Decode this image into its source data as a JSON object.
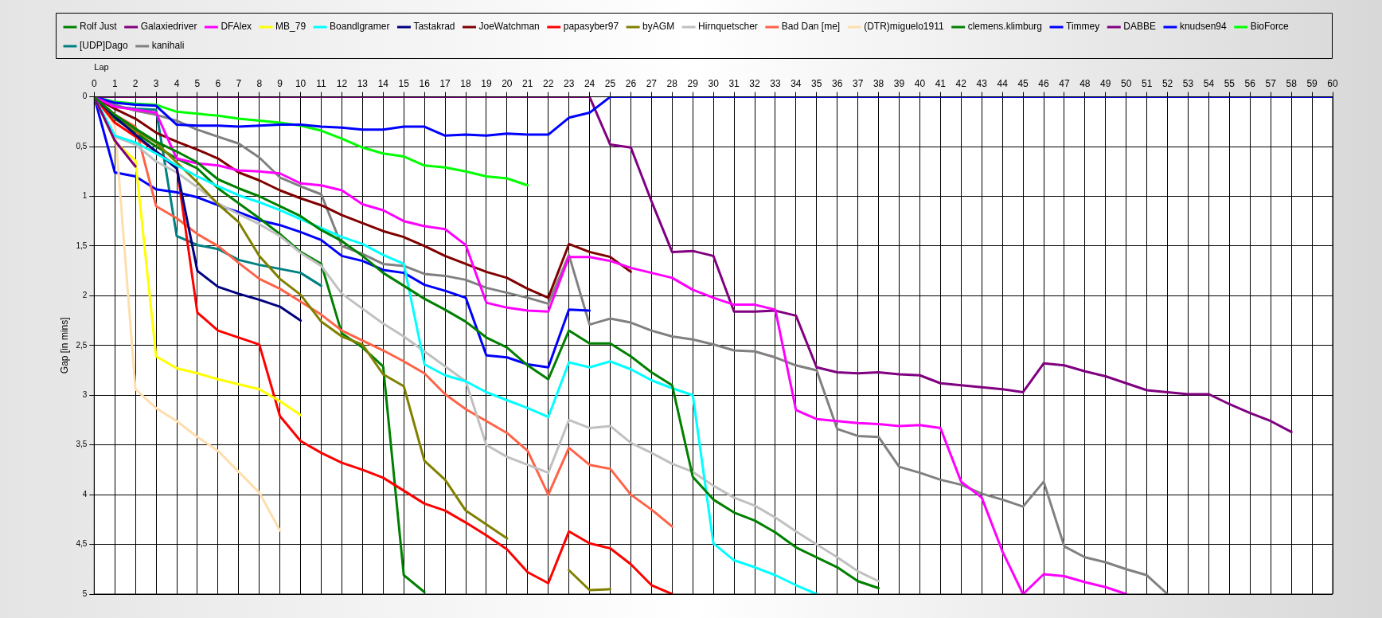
{
  "chart_data": {
    "type": "line",
    "xlabel": "Lap",
    "ylabel": "Gap [in mins]",
    "x": [
      0,
      1,
      2,
      3,
      4,
      5,
      6,
      7,
      8,
      9,
      10,
      11,
      12,
      13,
      14,
      15,
      16,
      17,
      18,
      19,
      20,
      21,
      22,
      23,
      24,
      25,
      26,
      27,
      28,
      29,
      30,
      31,
      32,
      33,
      34,
      35,
      36,
      37,
      38,
      39,
      40,
      41,
      42,
      43,
      44,
      45,
      46,
      47,
      48,
      49,
      50,
      51,
      52,
      53,
      54,
      55,
      56,
      57,
      58,
      59,
      60
    ],
    "xlim": [
      0,
      60
    ],
    "xticks": [
      0,
      1,
      2,
      3,
      4,
      5,
      6,
      7,
      8,
      9,
      10,
      11,
      12,
      13,
      14,
      15,
      16,
      17,
      18,
      19,
      20,
      21,
      22,
      23,
      24,
      25,
      26,
      27,
      28,
      29,
      30,
      31,
      32,
      33,
      34,
      35,
      36,
      37,
      38,
      39,
      40,
      41,
      42,
      43,
      44,
      45,
      46,
      47,
      48,
      49,
      50,
      51,
      52,
      53,
      54,
      55,
      56,
      57,
      58,
      59,
      60
    ],
    "ylim": [
      5,
      0
    ],
    "yticks": [
      0,
      {
        "value": 0.5,
        "label": "0,5"
      },
      1,
      {
        "value": 1.5,
        "label": "1,5"
      },
      2,
      {
        "value": 2.5,
        "label": "2,5"
      },
      3,
      {
        "value": 3.5,
        "label": "3,5"
      },
      4,
      {
        "value": 4.5,
        "label": "4,5"
      },
      5
    ],
    "grid": true,
    "legend": "top",
    "marker": "none",
    "line_style": "solid",
    "series": [
      {
        "name": "Rolf Just",
        "color": "#008000",
        "values": [
          0,
          0.18,
          0.32,
          0.45,
          0.55,
          0.66,
          0.83,
          0.92,
          1.0,
          1.1,
          1.2,
          1.34,
          1.45,
          1.6,
          1.77,
          1.9,
          2.03,
          2.14,
          2.26,
          2.42,
          2.52,
          2.7,
          2.84,
          2.35,
          2.48,
          2.48,
          2.61,
          2.77,
          2.9,
          3.82,
          4.05,
          4.18,
          4.26,
          4.38,
          4.53,
          4.63,
          4.73,
          4.87,
          4.94,
          null,
          null,
          null,
          null,
          null,
          null,
          null,
          null,
          null,
          null,
          null,
          null,
          null,
          null,
          null,
          null,
          null,
          null,
          null,
          null,
          null,
          null
        ]
      },
      {
        "name": "Galaxiedriver",
        "color": "#800080",
        "values": [
          0,
          0.44,
          0.7,
          null,
          null,
          null,
          null,
          null,
          null,
          null,
          null,
          null,
          null,
          null,
          null,
          null,
          null,
          null,
          null,
          null,
          null,
          null,
          null,
          null,
          null,
          null,
          null,
          null,
          null,
          null,
          null,
          null,
          null,
          null,
          null,
          null,
          null,
          null,
          null,
          null,
          null,
          null,
          null,
          null,
          null,
          null,
          null,
          null,
          null,
          null,
          null,
          null,
          null,
          null,
          null,
          null,
          null,
          null,
          null,
          null,
          null
        ]
      },
      {
        "name": "DFAlex",
        "color": "#ff00ff",
        "values": [
          0,
          0.1,
          0.13,
          0.16,
          0.62,
          0.67,
          0.69,
          0.74,
          0.75,
          0.77,
          0.87,
          0.89,
          0.94,
          1.08,
          1.14,
          1.25,
          1.3,
          1.33,
          1.49,
          2.07,
          2.12,
          2.15,
          2.16,
          1.61,
          1.61,
          1.65,
          1.72,
          1.77,
          1.82,
          1.94,
          2.02,
          2.09,
          2.09,
          2.14,
          3.15,
          3.24,
          3.26,
          3.28,
          3.29,
          3.31,
          3.3,
          3.33,
          3.87,
          4.03,
          4.57,
          5.0,
          4.8,
          4.82,
          4.88,
          4.93,
          5.0,
          null,
          null,
          null,
          null,
          null,
          null,
          null,
          null,
          null,
          null
        ]
      },
      {
        "name": "MB_79",
        "color": "#ffff00",
        "values": [
          0,
          0.45,
          0.64,
          2.61,
          2.73,
          2.78,
          2.84,
          2.89,
          2.94,
          3.06,
          3.2,
          null,
          null,
          null,
          null,
          null,
          null,
          null,
          null,
          null,
          null,
          null,
          null,
          null,
          null,
          null,
          null,
          null,
          null,
          null,
          null,
          null,
          null,
          null,
          null,
          null,
          null,
          null,
          null,
          null,
          null,
          null,
          null,
          null,
          null,
          null,
          null,
          null,
          null,
          null,
          null,
          null,
          null,
          null,
          null,
          null,
          null,
          null,
          null,
          null,
          null
        ]
      },
      {
        "name": "Boandlgramer",
        "color": "#00ffff",
        "values": [
          0,
          0.39,
          0.46,
          0.57,
          0.69,
          0.8,
          0.9,
          0.99,
          1.06,
          1.14,
          1.23,
          1.32,
          1.41,
          1.48,
          1.59,
          1.68,
          2.69,
          2.8,
          2.86,
          2.97,
          3.05,
          3.13,
          3.22,
          2.67,
          2.72,
          2.66,
          2.74,
          2.85,
          2.93,
          3.0,
          4.49,
          4.66,
          4.73,
          4.81,
          4.91,
          5.0,
          null,
          null,
          null,
          null,
          null,
          null,
          null,
          null,
          null,
          null,
          null,
          null,
          null,
          null,
          null,
          null,
          null,
          null,
          null,
          null,
          null,
          null,
          null,
          null,
          null
        ]
      },
      {
        "name": "Tastakrad",
        "color": "#000080",
        "values": [
          0,
          0.2,
          0.38,
          0.55,
          0.72,
          1.75,
          1.91,
          1.98,
          2.04,
          2.11,
          2.25,
          null,
          null,
          null,
          null,
          null,
          null,
          null,
          null,
          null,
          null,
          null,
          null,
          null,
          null,
          null,
          null,
          null,
          null,
          null,
          null,
          null,
          null,
          null,
          null,
          null,
          null,
          null,
          null,
          null,
          null,
          null,
          null,
          null,
          null,
          null,
          null,
          null,
          null,
          null,
          null,
          null,
          null,
          null,
          null,
          null,
          null,
          null,
          null,
          null,
          null
        ]
      },
      {
        "name": "JoeWatchman",
        "color": "#800000",
        "values": [
          0,
          0.12,
          0.22,
          0.36,
          0.45,
          0.53,
          0.62,
          0.76,
          0.84,
          0.94,
          1.02,
          1.09,
          1.19,
          1.27,
          1.35,
          1.41,
          1.5,
          1.6,
          1.68,
          1.76,
          1.82,
          1.93,
          2.02,
          1.48,
          1.56,
          1.61,
          1.76,
          null,
          null,
          null,
          null,
          null,
          null,
          null,
          null,
          null,
          null,
          null,
          null,
          null,
          null,
          null,
          null,
          null,
          null,
          null,
          null,
          null,
          null,
          null,
          null,
          null,
          null,
          null,
          null,
          null,
          null,
          null,
          null,
          null,
          null
        ]
      },
      {
        "name": "papasyber97",
        "color": "#ff0000",
        "values": [
          0,
          0.26,
          0.4,
          0.55,
          0.7,
          2.17,
          2.35,
          2.42,
          2.49,
          3.21,
          3.46,
          3.58,
          3.68,
          3.75,
          3.83,
          3.96,
          4.09,
          4.16,
          4.28,
          4.41,
          4.55,
          4.78,
          4.89,
          4.37,
          4.49,
          4.54,
          4.7,
          4.91,
          5.0,
          null,
          null,
          null,
          null,
          null,
          null,
          null,
          null,
          null,
          null,
          null,
          null,
          null,
          null,
          null,
          null,
          null,
          null,
          null,
          null,
          null,
          null,
          null,
          null,
          null,
          null,
          null,
          null,
          null,
          null,
          null,
          null
        ]
      },
      {
        "name": "byAGM",
        "color": "#808000",
        "values": [
          0,
          0.2,
          0.34,
          0.46,
          0.66,
          0.86,
          1.08,
          1.26,
          1.6,
          1.83,
          1.99,
          2.26,
          2.41,
          2.49,
          2.79,
          2.91,
          3.66,
          3.85,
          4.16,
          4.3,
          4.44,
          null,
          null,
          4.76,
          4.96,
          4.95,
          null,
          null,
          null,
          null,
          null,
          null,
          null,
          null,
          null,
          null,
          null,
          null,
          null,
          null,
          null,
          null,
          null,
          null,
          null,
          null,
          null,
          null,
          null,
          null,
          null,
          null,
          null,
          null,
          null,
          null,
          null,
          null,
          null,
          null,
          null
        ]
      },
      {
        "name": "Hirnquetscher",
        "color": "#c0c0c0",
        "values": [
          0,
          0.4,
          0.48,
          0.65,
          0.76,
          0.91,
          1.07,
          1.18,
          1.28,
          1.4,
          1.57,
          1.7,
          1.98,
          2.13,
          2.28,
          2.41,
          2.56,
          2.71,
          2.86,
          3.5,
          3.62,
          3.7,
          3.78,
          3.25,
          3.33,
          3.31,
          3.48,
          3.58,
          3.69,
          3.77,
          3.91,
          4.03,
          4.11,
          4.23,
          4.37,
          4.5,
          4.63,
          4.77,
          4.87,
          null,
          null,
          null,
          null,
          null,
          null,
          null,
          null,
          null,
          null,
          null,
          null,
          null,
          null,
          null,
          null,
          null,
          null,
          null,
          null,
          null,
          null
        ]
      },
      {
        "name": "Bad Dan [me]",
        "color": "#ff6347",
        "values": [
          0,
          0.18,
          0.3,
          1.1,
          1.22,
          1.38,
          1.5,
          1.67,
          1.83,
          1.93,
          2.06,
          2.19,
          2.35,
          2.45,
          2.55,
          2.66,
          2.78,
          2.99,
          3.14,
          3.26,
          3.38,
          3.56,
          4.0,
          3.53,
          3.7,
          3.74,
          4.0,
          4.15,
          4.32,
          null,
          null,
          null,
          null,
          null,
          null,
          null,
          null,
          null,
          null,
          null,
          null,
          null,
          null,
          null,
          null,
          null,
          null,
          null,
          null,
          null,
          null,
          null,
          null,
          null,
          null,
          null,
          null,
          null,
          null,
          null,
          null
        ]
      },
      {
        "name": "(DTR)miguelo1911",
        "color": "#ffdead",
        "values": [
          0,
          0.28,
          2.94,
          3.13,
          3.26,
          3.42,
          3.56,
          3.77,
          3.98,
          4.36,
          null,
          null,
          null,
          null,
          null,
          null,
          null,
          null,
          null,
          null,
          null,
          null,
          null,
          null,
          null,
          null,
          null,
          null,
          null,
          null,
          null,
          null,
          null,
          null,
          null,
          null,
          null,
          null,
          null,
          null,
          null,
          null,
          null,
          null,
          null,
          null,
          null,
          null,
          null,
          null,
          null,
          null,
          null,
          null,
          null,
          null,
          null,
          null,
          null,
          null,
          null
        ]
      },
      {
        "name": "clemens.klimburg",
        "color": "#008000",
        "values": [
          0,
          0.22,
          0.36,
          0.5,
          0.62,
          0.72,
          0.92,
          1.07,
          1.22,
          1.38,
          1.56,
          1.68,
          2.38,
          2.52,
          2.71,
          4.81,
          4.98,
          null,
          null,
          null,
          null,
          null,
          null,
          null,
          null,
          null,
          null,
          null,
          null,
          null,
          null,
          null,
          null,
          null,
          null,
          null,
          null,
          null,
          null,
          null,
          null,
          null,
          null,
          null,
          null,
          null,
          null,
          null,
          null,
          null,
          null,
          null,
          null,
          null,
          null,
          null,
          null,
          null,
          null,
          null,
          null
        ]
      },
      {
        "name": "Timmey",
        "color": "#0000ff",
        "values": [
          0,
          0.06,
          0.08,
          0.09,
          0.28,
          0.29,
          0.29,
          0.3,
          0.29,
          0.28,
          0.28,
          0.3,
          0.31,
          0.33,
          0.33,
          0.3,
          0.3,
          0.39,
          0.38,
          0.39,
          0.37,
          0.38,
          0.38,
          0.21,
          0.16,
          0,
          0,
          0,
          0,
          0,
          0,
          0,
          0,
          0,
          0,
          0,
          0,
          0,
          0,
          0,
          0,
          0,
          0,
          0,
          0,
          0,
          0,
          0,
          0,
          0,
          0,
          0,
          0,
          0,
          0,
          0,
          0,
          0,
          0,
          0,
          0
        ]
      },
      {
        "name": "DABBE",
        "color": "#800080",
        "values": [
          0,
          0,
          0,
          0,
          0,
          0,
          0,
          0,
          0,
          0,
          0,
          0,
          0,
          0,
          0,
          0,
          0,
          0,
          0,
          0,
          0,
          0,
          0,
          0,
          0,
          0.48,
          0.51,
          1.05,
          1.56,
          1.55,
          1.6,
          2.16,
          2.16,
          2.15,
          2.2,
          2.72,
          2.77,
          2.78,
          2.77,
          2.79,
          2.8,
          2.88,
          2.9,
          2.92,
          2.94,
          2.97,
          2.68,
          2.7,
          2.76,
          2.81,
          2.88,
          2.95,
          2.97,
          2.99,
          2.99,
          3.09,
          3.18,
          3.26,
          3.37,
          null,
          null
        ]
      },
      {
        "name": "knudsen94",
        "color": "#0000ff",
        "values": [
          0,
          0.76,
          0.8,
          0.93,
          0.96,
          1.01,
          1.09,
          1.16,
          1.24,
          1.29,
          1.36,
          1.44,
          1.6,
          1.65,
          1.74,
          1.77,
          1.89,
          1.95,
          2.02,
          2.6,
          2.62,
          2.69,
          2.72,
          2.14,
          2.15,
          null,
          null,
          null,
          null,
          null,
          null,
          null,
          null,
          null,
          null,
          null,
          null,
          null,
          null,
          null,
          null,
          null,
          null,
          null,
          null,
          null,
          null,
          null,
          null,
          null,
          null,
          null,
          null,
          null,
          null,
          null,
          null,
          null,
          null,
          null,
          null
        ]
      },
      {
        "name": "BioForce",
        "color": "#00ff00",
        "values": [
          0,
          0.05,
          0.07,
          0.08,
          0.15,
          0.17,
          0.19,
          0.22,
          0.24,
          0.26,
          0.29,
          0.34,
          0.42,
          0.51,
          0.57,
          0.6,
          0.69,
          0.71,
          0.75,
          0.8,
          0.82,
          0.89,
          null,
          null,
          null,
          null,
          null,
          null,
          null,
          null,
          null,
          null,
          null,
          null,
          null,
          null,
          null,
          null,
          null,
          null,
          null,
          null,
          null,
          null,
          null,
          null,
          null,
          null,
          null,
          null,
          null,
          null,
          null,
          null,
          null,
          null,
          null,
          null,
          null,
          null,
          null
        ]
      },
      {
        "name": "[UDP]Dago",
        "color": "#008080",
        "values": [
          0,
          0.1,
          0.12,
          0.13,
          1.4,
          1.49,
          1.53,
          1.64,
          1.69,
          1.73,
          1.77,
          1.9,
          null,
          null,
          null,
          null,
          null,
          null,
          null,
          null,
          null,
          null,
          null,
          null,
          null,
          null,
          null,
          null,
          null,
          null,
          null,
          null,
          null,
          null,
          null,
          null,
          null,
          null,
          null,
          null,
          null,
          null,
          null,
          null,
          null,
          null,
          null,
          null,
          null,
          null,
          null,
          null,
          null,
          null,
          null,
          null,
          null,
          null,
          null,
          null,
          null
        ]
      },
      {
        "name": "kanihali",
        "color": "#808080",
        "values": [
          0,
          0.08,
          0.14,
          0.18,
          0.24,
          0.33,
          0.4,
          0.47,
          0.61,
          0.81,
          0.9,
          0.98,
          1.5,
          1.58,
          1.68,
          1.7,
          1.78,
          1.8,
          1.84,
          1.92,
          1.97,
          2.02,
          2.08,
          1.59,
          2.29,
          2.23,
          2.27,
          2.35,
          2.41,
          2.44,
          2.49,
          2.55,
          2.56,
          2.62,
          2.7,
          2.75,
          3.34,
          3.41,
          3.42,
          3.72,
          3.78,
          3.85,
          3.9,
          3.99,
          4.05,
          4.12,
          3.87,
          4.52,
          4.63,
          4.68,
          4.75,
          4.81,
          5.0,
          null,
          null,
          null,
          null,
          null,
          null,
          null,
          null
        ]
      }
    ]
  }
}
